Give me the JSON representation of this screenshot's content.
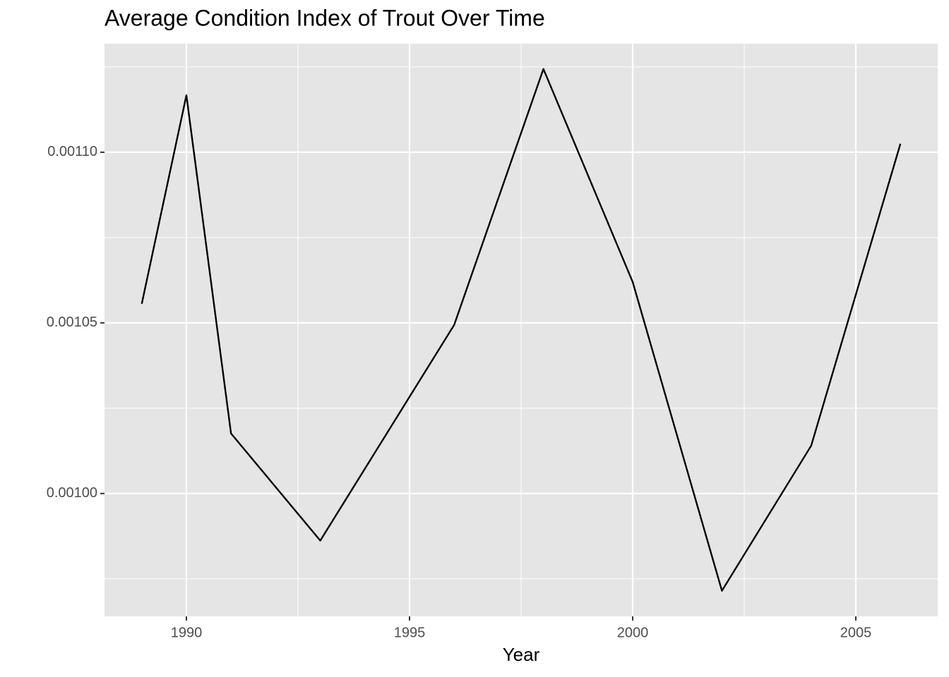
{
  "chart_data": {
    "type": "line",
    "title": "Average Condition Index of Trout Over Time",
    "x_label": "Year",
    "x": [
      1989,
      1990,
      1991,
      1993,
      1996,
      1998,
      2000,
      2002,
      2004,
      2006
    ],
    "series": [
      {
        "name": "Condition Index",
        "color": "#000000",
        "values": [
          0.0010556,
          0.0011167,
          0.0010176,
          0.0009862,
          0.0010494,
          0.0011244,
          0.001062,
          0.0009715,
          0.001014,
          0.0011025
        ]
      }
    ],
    "xlim": [
      1988.165,
      2006.835
    ],
    "xticks": [
      1990,
      1995,
      2000,
      2005
    ],
    "ylim": [
      0.000964,
      0.0011318
    ],
    "yticks": [
      {
        "value": 0.001,
        "label": "0.00100"
      },
      {
        "value": 0.00105,
        "label": "0.00105"
      },
      {
        "value": 0.0011,
        "label": "0.00110"
      }
    ],
    "grid": true
  }
}
